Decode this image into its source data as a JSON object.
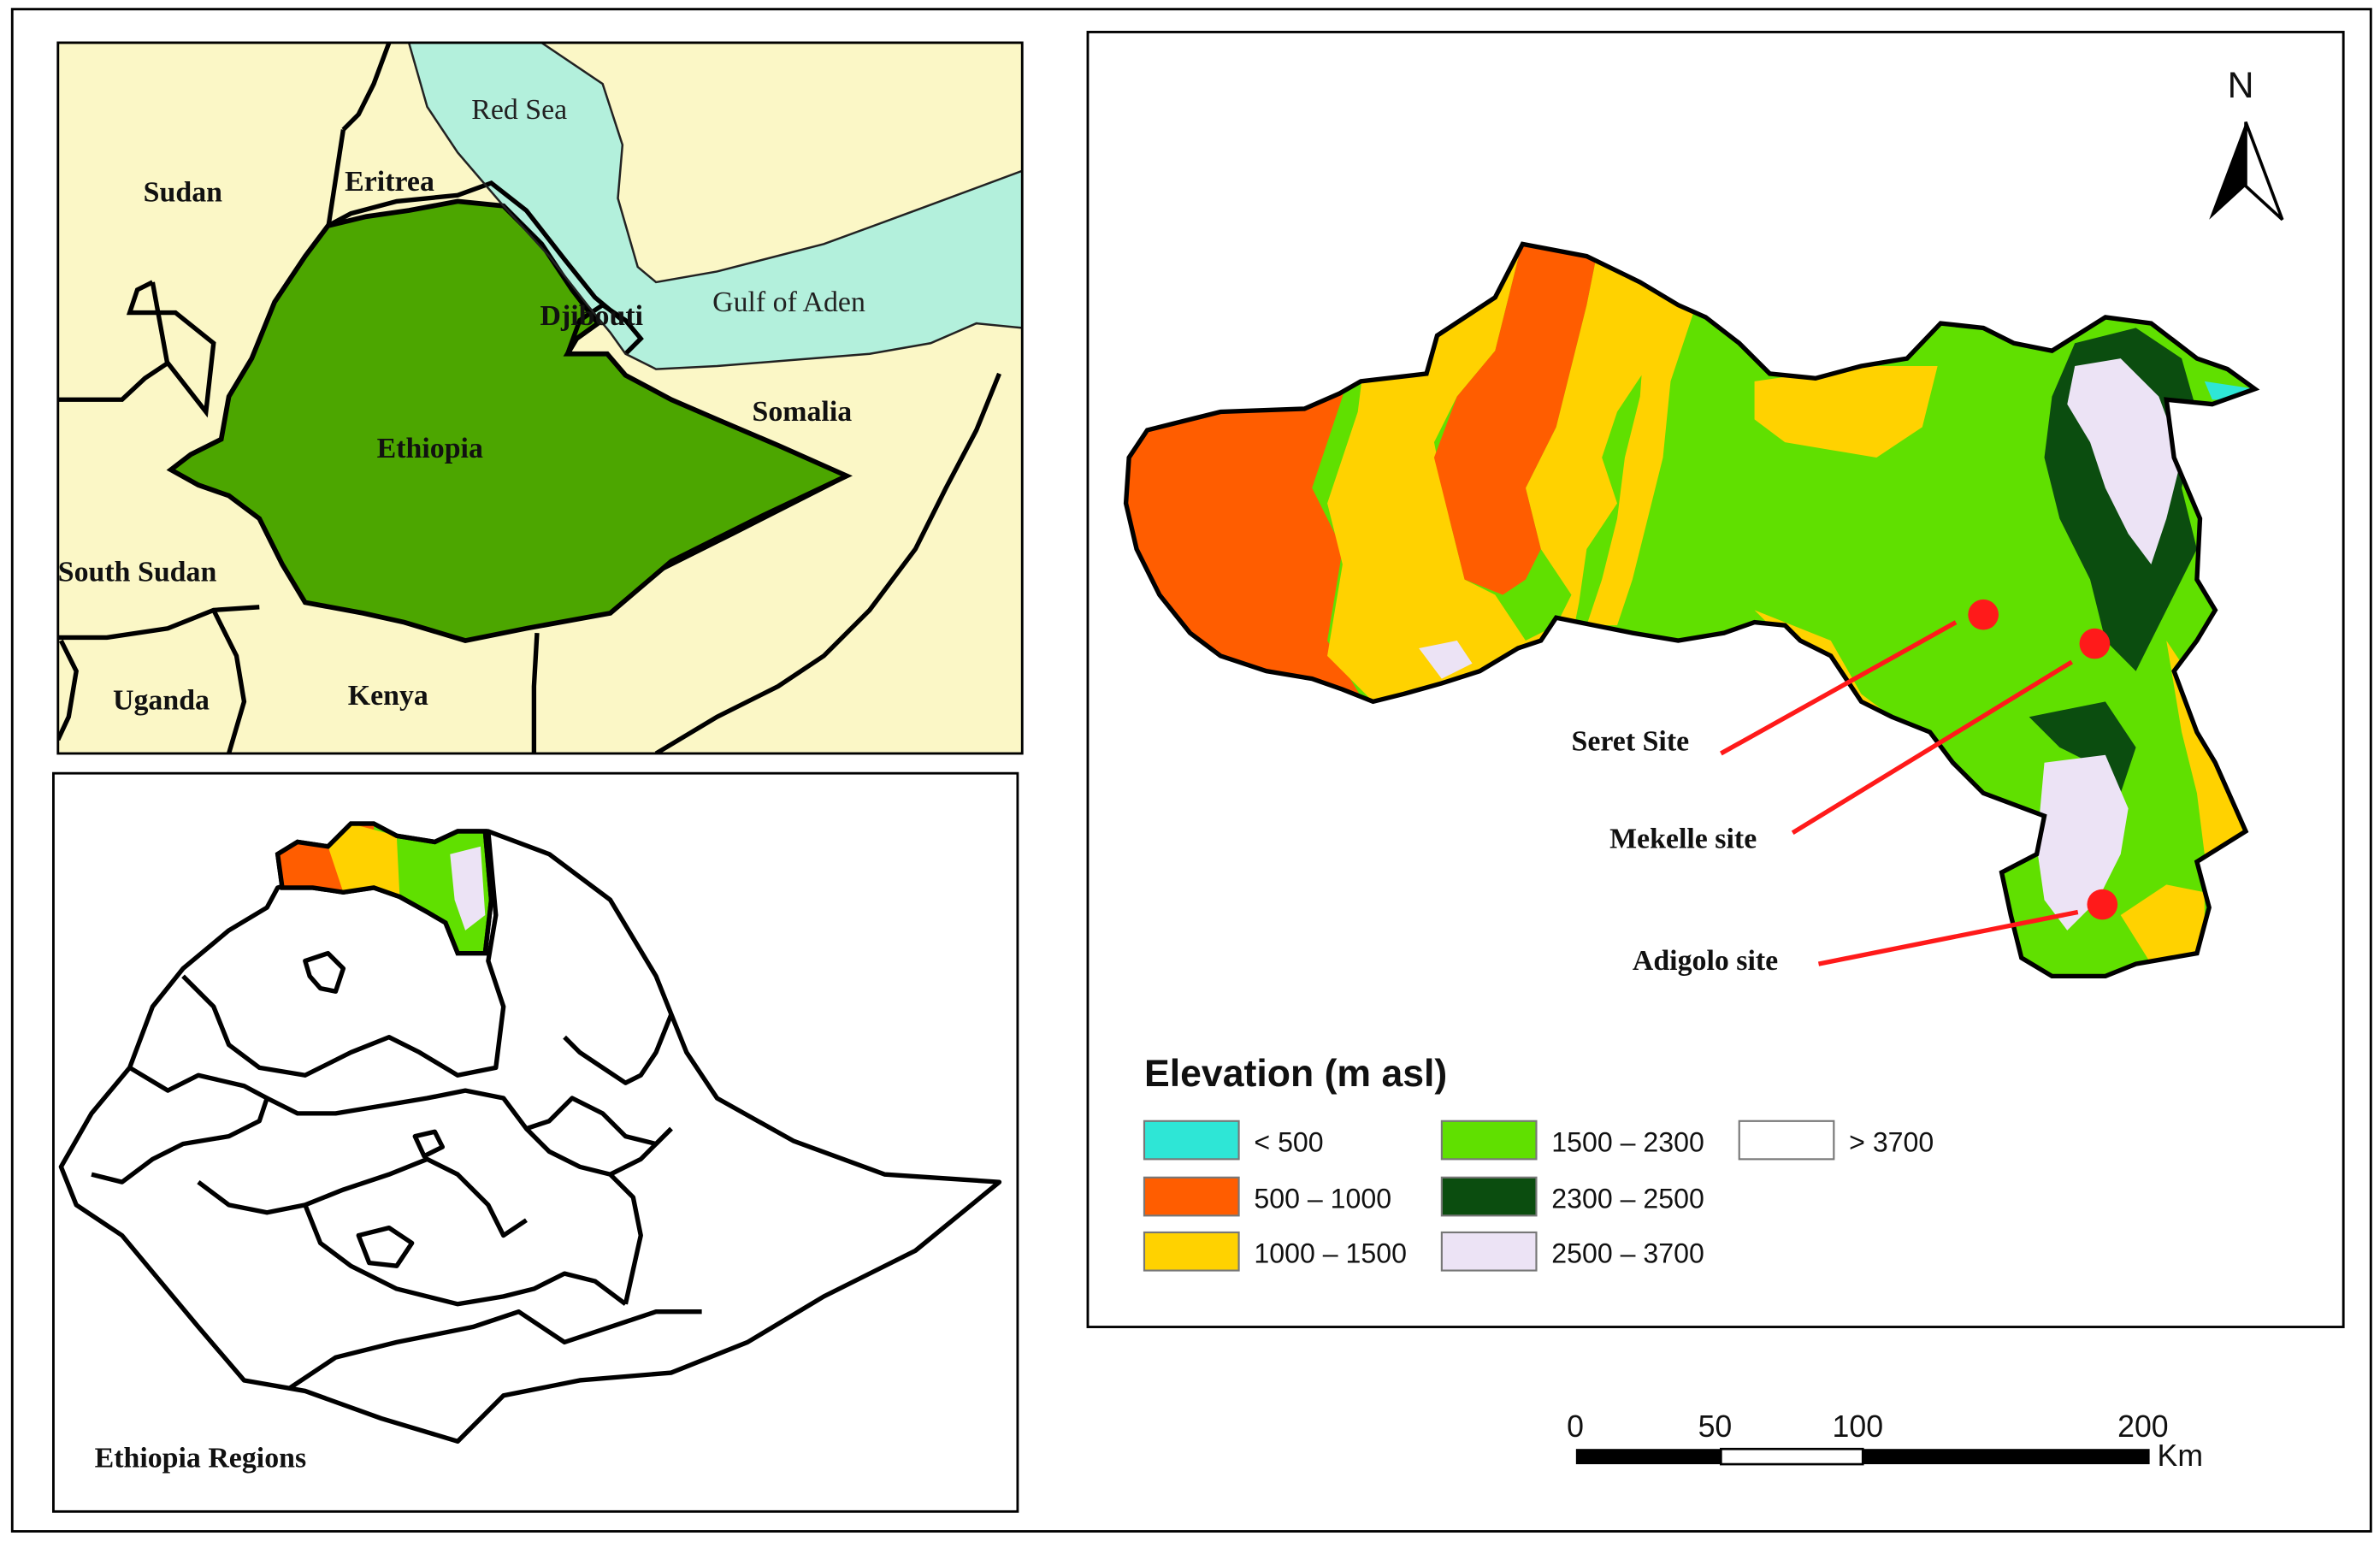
{
  "colors": {
    "land": "#fbf7c6",
    "sea": "#b3f0dc",
    "ethiopia": "#4ca600",
    "lt500": "#2ee6d6",
    "e500_1000": "#ff5d00",
    "e1000_1500": "#ffd200",
    "e1500_2300": "#60e000",
    "e2300_2500": "#0b4d0f",
    "e2500_3700": "#ece3f5",
    "gt3700": "#ffffff",
    "site_marker": "#ff1a1a"
  },
  "inset_horn": {
    "countries": {
      "sudan": "Sudan",
      "eritrea": "Eritrea",
      "djibouti": "Djibouti",
      "somalia": "Somalia",
      "ethiopia": "Ethiopia",
      "south_sudan": "South Sudan",
      "uganda": "Uganda",
      "kenya": "Kenya"
    },
    "seas": {
      "red_sea": "Red Sea",
      "gulf_of_aden": "Gulf of Aden"
    }
  },
  "inset_regions": {
    "title": "Ethiopia Regions"
  },
  "main_map": {
    "north_arrow": "N",
    "sites": [
      {
        "label": "Seret Site"
      },
      {
        "label": "Mekelle site"
      },
      {
        "label": "Adigolo site"
      }
    ],
    "legend": {
      "title": "Elevation (m asl)",
      "items": [
        {
          "label": "< 500",
          "icon": "swatch-lt500"
        },
        {
          "label": "500 – 1000",
          "icon": "swatch-500-1000"
        },
        {
          "label": "1000 – 1500",
          "icon": "swatch-1000-1500"
        },
        {
          "label": "1500 – 2300",
          "icon": "swatch-1500-2300"
        },
        {
          "label": "2300 – 2500",
          "icon": "swatch-2300-2500"
        },
        {
          "label": "2500 – 3700",
          "icon": "swatch-2500-3700"
        },
        {
          "label": "> 3700",
          "icon": "swatch-gt3700"
        }
      ]
    }
  },
  "scale_bar": {
    "ticks": [
      "0",
      "50",
      "100",
      "200"
    ],
    "unit": "Km"
  }
}
